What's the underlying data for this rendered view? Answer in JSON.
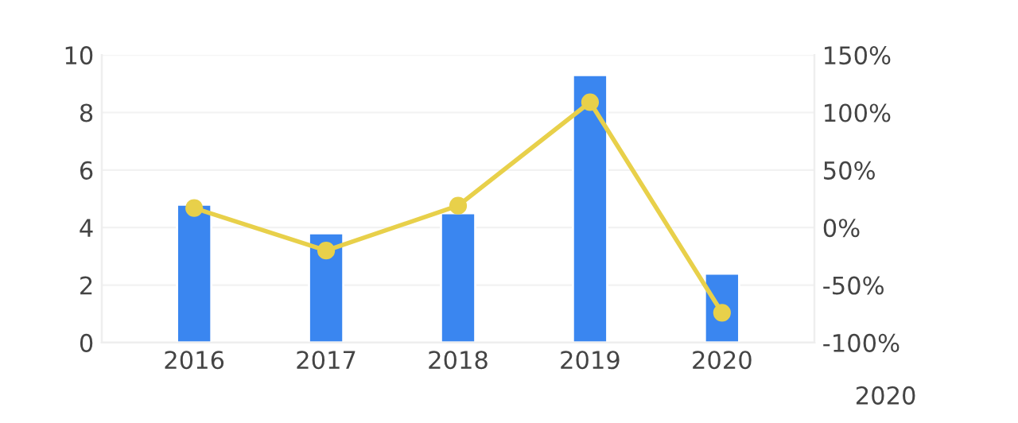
{
  "chart_data": {
    "type": "bar",
    "categories": [
      "2016",
      "2017",
      "2018",
      "2019",
      "2020"
    ],
    "series": [
      {
        "color": "#3a86f0",
        "values": [
          4.8,
          3.8,
          4.5,
          9.3,
          2.4
        ]
      },
      {
        "type": "line",
        "axis": "y2",
        "color": "#e8d04a",
        "marker": "circle",
        "values": [
          17,
          -20,
          19,
          109,
          -74
        ]
      }
    ],
    "ylim": [
      0,
      10
    ],
    "yticks": [
      0,
      2,
      4,
      6,
      8,
      10
    ],
    "y2lim": [
      -100,
      150
    ],
    "y2ticks": [
      {
        "value": -100,
        "label": "-100%"
      },
      {
        "value": -50,
        "label": "-50%"
      },
      {
        "value": 0,
        "label": "0%"
      },
      {
        "value": 50,
        "label": "50%"
      },
      {
        "value": 100,
        "label": "100%"
      },
      {
        "value": 150,
        "label": "150%"
      }
    ],
    "grid": "y",
    "annotations": [
      "2020"
    ]
  }
}
